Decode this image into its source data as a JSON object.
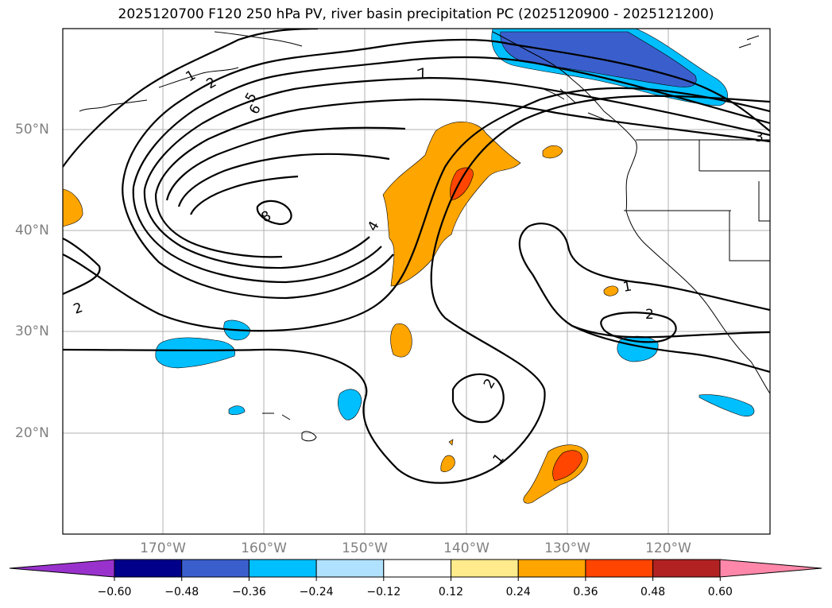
{
  "title": "2025120700 F120 250 hPa PV, river basin precipitation PC (2025120900 - 2025121200)",
  "latitude_labels": [
    "50°N",
    "40°N",
    "30°N",
    "20°N"
  ],
  "longitude_labels": [
    "170°W",
    "160°W",
    "150°W",
    "140°W",
    "130°W",
    "120°W"
  ],
  "contour_labels": [
    "1",
    "2",
    "5",
    "6",
    "7",
    "8",
    "4",
    "3",
    "2",
    "1",
    "2",
    "2",
    "1"
  ],
  "colorbar": {
    "ticks": [
      "−0.60",
      "−0.48",
      "−0.36",
      "−0.24",
      "−0.12",
      "0.12",
      "0.24",
      "0.36",
      "0.48",
      "0.60"
    ],
    "colors": [
      "#9932cc",
      "#00008b",
      "#3a5fcd",
      "#00bfff",
      "#b0e2ff",
      "#ffffff",
      "#ffeb8c",
      "#ffa500",
      "#ff4500",
      "#b22222",
      "#ff88aa",
      "#ff88aa"
    ]
  }
}
